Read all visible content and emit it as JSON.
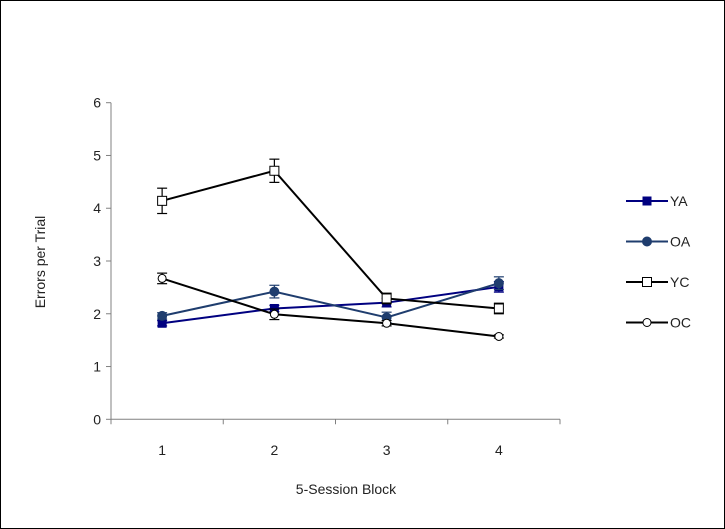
{
  "chart_data": {
    "type": "line",
    "title": "",
    "xlabel": "5-Session Block",
    "ylabel": "Errors per Trial",
    "categories": [
      "1",
      "2",
      "3",
      "4"
    ],
    "ylim": [
      0,
      6
    ],
    "yticks": [
      "0",
      "1",
      "2",
      "3",
      "4",
      "5",
      "6"
    ],
    "grid": false,
    "legend_position": "right",
    "series": [
      {
        "name": "YA",
        "values": [
          1.82,
          2.1,
          2.21,
          2.51
        ],
        "errors": [
          0.05,
          0.06,
          0.08,
          0.1
        ],
        "color": "#000080",
        "marker": "square-filled"
      },
      {
        "name": "OA",
        "values": [
          1.96,
          2.42,
          1.93,
          2.58
        ],
        "errors": [
          0.06,
          0.12,
          0.1,
          0.12
        ],
        "color": "#1f3d6e",
        "marker": "circle-filled"
      },
      {
        "name": "YC",
        "values": [
          4.14,
          4.71,
          2.29,
          2.1
        ],
        "errors": [
          0.24,
          0.22,
          0.1,
          0.1
        ],
        "color": "#000000",
        "marker": "square-open"
      },
      {
        "name": "OC",
        "values": [
          2.67,
          1.99,
          1.82,
          1.57
        ],
        "errors": [
          0.1,
          0.1,
          0.05,
          0.03
        ],
        "color": "#000000",
        "marker": "circle-open"
      }
    ]
  }
}
